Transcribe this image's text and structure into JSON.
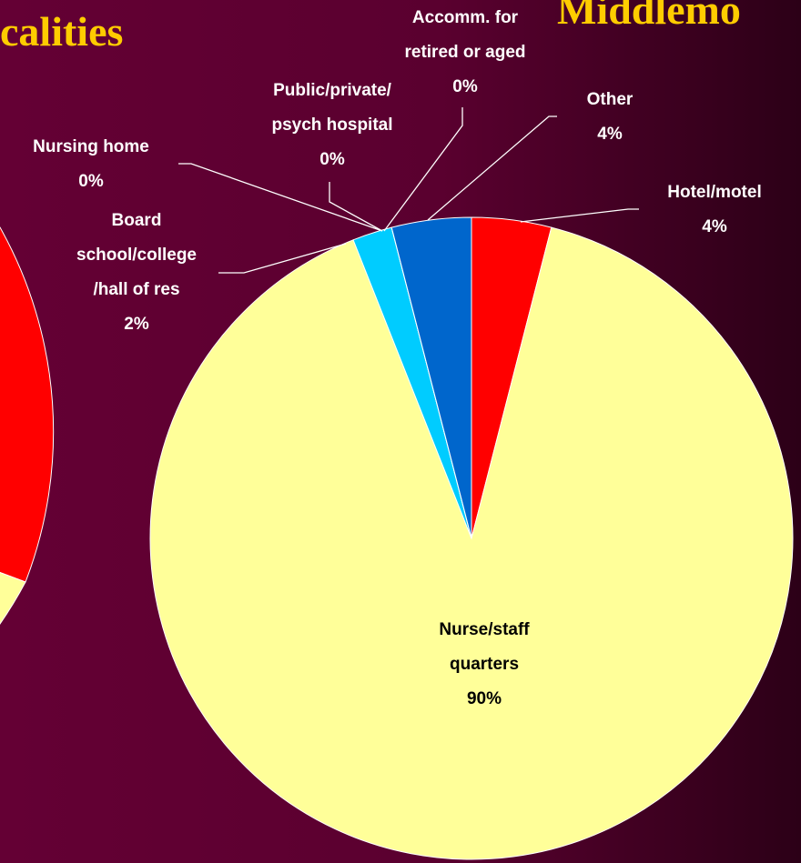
{
  "slide_titles": [
    "calities",
    "Middlemo"
  ],
  "chart_data": {
    "type": "pie",
    "categories": [
      "Hotel/motel",
      "Nurse/staff\nquarters",
      "Board\nschool/college\n/hall of res",
      "Nursing home",
      "Public/private/\npsych hospital",
      "Accomm. for\nretired or aged",
      "Other"
    ],
    "values": [
      4,
      90,
      2,
      0,
      0,
      0,
      4
    ],
    "value_labels": [
      "4%",
      "90%",
      "2%",
      "0%",
      "0%",
      "0%",
      "4%"
    ],
    "colors": [
      "#ff0000",
      "#ffff99",
      "#00ccff",
      "#9999ff",
      "#993366",
      "#ffffcc",
      "#0066cc"
    ]
  }
}
